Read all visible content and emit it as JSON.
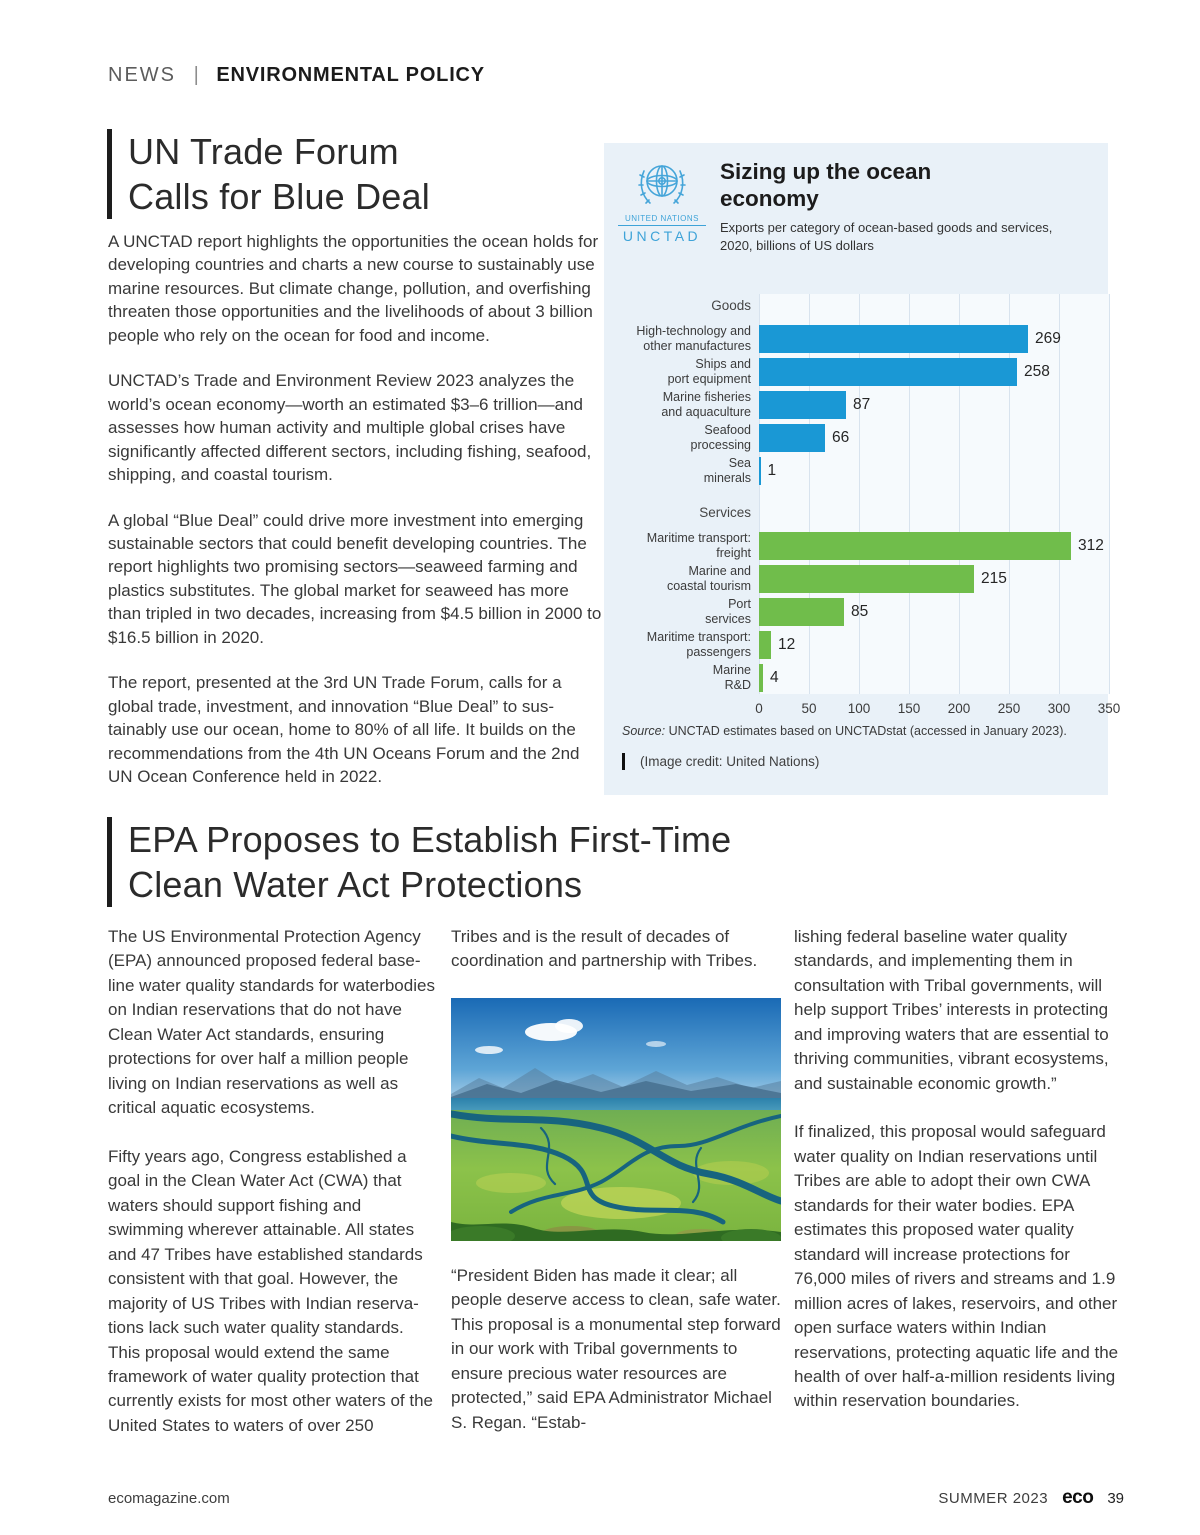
{
  "kicker": {
    "section": "NEWS",
    "separator": "|",
    "topic": "ENVIRONMENTAL POLICY"
  },
  "article1": {
    "title_line1": "UN Trade Forum",
    "title_line2": "Calls for Blue Deal",
    "paragraphs": [
      "A UNCTAD report highlights the opportunities the ocean holds for developing countries and charts a new course to sustainably use marine resources. But climate change, pollution, and overfishing threaten those opportunities and the livelihoods of about 3 billion people who rely on the ocean for food and income.",
      "UNCTAD’s Trade and Environment Review 2023 analyzes the world’s ocean economy—worth an estimated $3–6 trillion—and assesses how human activity and multiple global crises have significantly affected different sectors, including fishing, seafood, shipping, and coastal tourism.",
      "A global “Blue Deal” could drive more investment into emerging sustainable sectors that could benefit developing countries. The report highlights two promising sectors—seaweed farming and plastics substitutes. The global market for seaweed has more than tripled in two decades, increasing from $4.5 billion in 2000 to $16.5 billion in 2020.",
      "The report, presented at the 3rd UN Trade Forum, calls for a global trade, investment, and innovation “Blue Deal” to sus­tainably use our ocean, home to 80% of all life. It builds on the recommendations from the 4th UN Oceans Forum and the 2nd UN Ocean Conference held in 2022."
    ]
  },
  "chart_panel": {
    "logo_line1": "UNITED NATIONS",
    "logo_line2": "UNCTAD",
    "title": "Sizing up the ocean economy",
    "subtitle": "Exports per category of ocean-based goods and services, 2020, billions of US dollars",
    "source_label": "Source:",
    "source_text": "UNCTAD estimates based on UNCTADstat (accessed in January 2023).",
    "image_credit": "(Image credit: United Nations)"
  },
  "chart_data": {
    "type": "bar",
    "orientation": "horizontal",
    "title": "Sizing up the ocean economy",
    "subtitle": "Exports per category of ocean-based goods and services, 2020, billions of US dollars",
    "unit": "billions of US dollars",
    "xlim": [
      0,
      350
    ],
    "x_ticks": [
      0,
      50,
      100,
      150,
      200,
      250,
      300,
      350
    ],
    "grid": true,
    "groups": [
      {
        "name": "Goods",
        "color": "#1a98d5",
        "items": [
          {
            "label": "High-technology and other manufactures",
            "label_lines": [
              "High-technology and",
              "other manufactures"
            ],
            "value": 269
          },
          {
            "label": "Ships and port equipment",
            "label_lines": [
              "Ships and",
              "port equipment"
            ],
            "value": 258
          },
          {
            "label": "Marine fisheries and aquaculture",
            "label_lines": [
              "Marine fisheries",
              "and aquaculture"
            ],
            "value": 87
          },
          {
            "label": "Seafood processing",
            "label_lines": [
              "Seafood",
              "processing"
            ],
            "value": 66
          },
          {
            "label": "Sea minerals",
            "label_lines": [
              "Sea",
              "minerals"
            ],
            "value": 1
          }
        ]
      },
      {
        "name": "Services",
        "color": "#70bd4b",
        "items": [
          {
            "label": "Maritime transport: freight",
            "label_lines": [
              "Maritime transport:",
              "freight"
            ],
            "value": 312
          },
          {
            "label": "Marine and coastal tourism",
            "label_lines": [
              "Marine and",
              "coastal tourism"
            ],
            "value": 215
          },
          {
            "label": "Port services",
            "label_lines": [
              "Port",
              "services"
            ],
            "value": 85
          },
          {
            "label": "Maritime transport: passengers",
            "label_lines": [
              "Maritime transport:",
              "passengers"
            ],
            "value": 12
          },
          {
            "label": "Marine R&D",
            "label_lines": [
              "Marine",
              "R&D"
            ],
            "value": 4
          }
        ]
      }
    ]
  },
  "article2": {
    "title_line1": "EPA Proposes to Establish First-Time",
    "title_line2": "Clean Water Act Protections",
    "col1_paragraphs": [
      "The US Environmental Protection Agency (EPA) announced proposed federal base­line water quality standards for water­bodies on Indian reservations that do not have Clean Water Act standards, ensuring protections for over half a million people living on Indian reservations as well as critical aquatic ecosystems.",
      "Fifty years ago, Congress established a goal in the Clean Water Act (CWA) that waters should support fishing and swimming wherever attainable. All states and 47 Tribes have established standards consistent with that goal. However, the majority of US Tribes with Indian reserva­tions lack such water quality standards. This proposal would extend the same framework of water quality protection that currently exists for most other waters of the United States to waters of over 250"
    ],
    "col2_intro": "Tribes and is the result of decades of coordination and partnership with Tribes.",
    "col2_quote": "“President Biden has made it clear; all people deserve access to clean, safe water. This proposal is a monumental step forward in our work with Tribal governments to ensure precious water resources are protected,” said EPA Administrator Michael S. Regan. “Estab-",
    "col3_paragraphs": [
      "lishing federal baseline water quality standards, and implementing them in consultation with Tribal governments, will help support Tribes’ interests in protecting and improving waters that are essential to thriving communities, vibrant ecosystems, and sustainable economic growth.”",
      "If finalized, this proposal would safeguard water quality on Indian reservations until Tribes are able to adopt their own CWA standards for their water bodies. EPA estimates this proposed water quality standard will increase protections for 76,000 miles of rivers and streams and 1.9 million acres of lakes, reservoirs, and other open surface waters within Indian reservations, protecting aquatic life and the health of over half-a-million residents living within reservation boundaries."
    ]
  },
  "footer": {
    "site": "ecomagazine.com",
    "issue": "SUMMER 2023",
    "logo": "eco",
    "page_number": "39"
  }
}
